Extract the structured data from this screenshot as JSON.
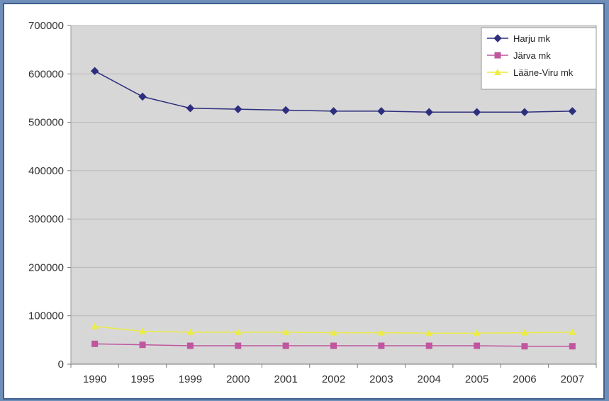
{
  "chart_data": {
    "type": "line",
    "categories": [
      "1990",
      "1995",
      "1999",
      "2000",
      "2001",
      "2002",
      "2003",
      "2004",
      "2005",
      "2006",
      "2007"
    ],
    "series": [
      {
        "name": "Harju mk",
        "color": "#2e2e7e",
        "marker": "diamond",
        "values": [
          606000,
          553000,
          529000,
          527000,
          525000,
          523000,
          523000,
          521000,
          521000,
          521000,
          523000
        ]
      },
      {
        "name": "Järva mk",
        "color": "#c0569f",
        "marker": "square",
        "values": [
          42000,
          40000,
          38000,
          38000,
          38000,
          38000,
          38000,
          38000,
          38000,
          37000,
          37000
        ]
      },
      {
        "name": "Lääne-Viru mk",
        "color": "#ecec44",
        "marker": "triangle",
        "values": [
          78000,
          68000,
          66000,
          66000,
          66000,
          65000,
          65000,
          64000,
          64000,
          65000,
          66000
        ]
      }
    ],
    "yticks": [
      "0",
      "100000",
      "200000",
      "300000",
      "400000",
      "500000",
      "600000",
      "700000"
    ],
    "ylim": [
      0,
      700000
    ],
    "grid": true,
    "legend": "top-right",
    "plot_background": "#d7d7d7",
    "title": "",
    "xlabel": "",
    "ylabel": ""
  }
}
